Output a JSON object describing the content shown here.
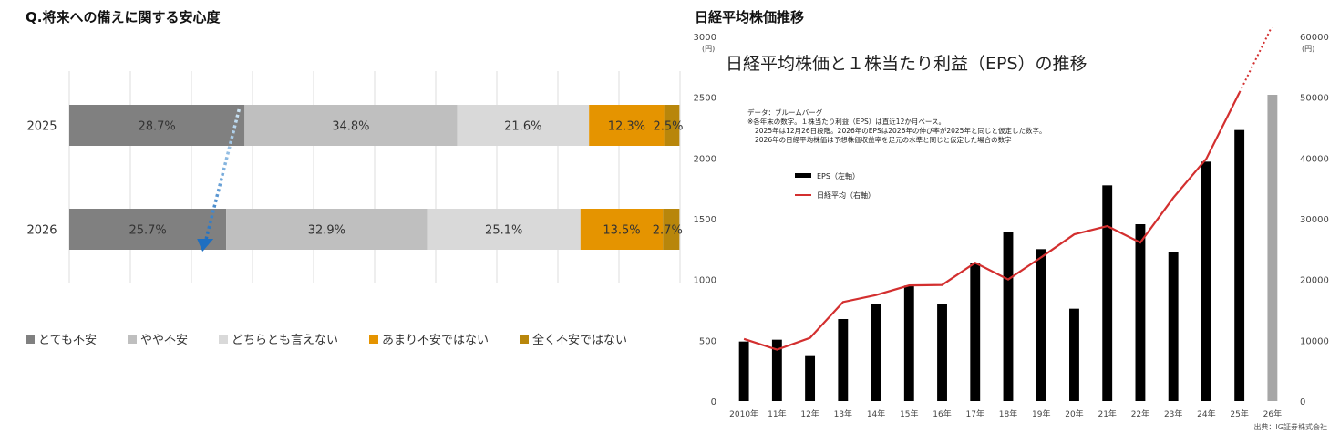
{
  "left": {
    "title": "Q.将来への備えに関する安心度",
    "chart_data": {
      "type": "bar",
      "orientation": "horizontal-stacked-100",
      "categories": [
        "2025",
        "2026"
      ],
      "series": [
        {
          "name": "とても不安",
          "values": [
            28.7,
            25.7
          ],
          "labels": [
            "28.7%",
            "25.7%"
          ],
          "color": "#808080"
        },
        {
          "name": "やや不安",
          "values": [
            34.8,
            32.9
          ],
          "labels": [
            "34.8%",
            "32.9%"
          ],
          "color": "#bfbfbf"
        },
        {
          "name": "どちらとも言えない",
          "values": [
            21.6,
            25.1
          ],
          "labels": [
            "21.6%",
            "25.1%"
          ],
          "color": "#d9d9d9"
        },
        {
          "name": "あまり不安ではない",
          "values": [
            12.3,
            13.5
          ],
          "labels": [
            "12.3%",
            "13.5%"
          ],
          "color": "#e59400"
        },
        {
          "name": "全く不安ではない",
          "values": [
            2.5,
            2.7
          ],
          "labels": [
            "2.5%",
            "2.7%"
          ],
          "color": "#b8860b"
        }
      ],
      "xlim": [
        0,
        100
      ],
      "grid": true,
      "legend": "bottom",
      "annotation": "arrow from 2025 とても不安 to 2026 とても不安"
    }
  },
  "right": {
    "title": "日経平均株価推移",
    "inner_title": "日経平均株価と１株当たり利益（EPS）の推移",
    "notes": [
      "データ：ブルームバーグ",
      "※各年末の数字。１株当たり利益（EPS）は直近12か月ベース。",
      "2025年は12月26日段階。2026年のEPSは2026年の伸び率が2025年と同じと仮定した数字。",
      "2026年の日経平均株価は予想株価収益率を足元の水準と同じと仮定した場合の数字"
    ],
    "source": "出典：IG証券株式会社",
    "left_unit": "(円)",
    "right_unit": "(円)",
    "chart_data": {
      "type": "bar+line",
      "categories": [
        "2010年",
        "11年",
        "12年",
        "13年",
        "14年",
        "15年",
        "16年",
        "17年",
        "18年",
        "19年",
        "20年",
        "21年",
        "22年",
        "23年",
        "24年",
        "25年",
        "26年"
      ],
      "series": [
        {
          "name": "EPS（左軸）",
          "axis": "left",
          "type": "bar",
          "values": [
            490,
            505,
            370,
            675,
            800,
            950,
            800,
            1135,
            1395,
            1250,
            760,
            1775,
            1455,
            1225,
            1970,
            2230,
            2520
          ],
          "color": "#000000",
          "last_color": "#a6a6a6"
        },
        {
          "name": "日経平均（右軸）",
          "axis": "right",
          "type": "line",
          "values": [
            10230,
            8460,
            10400,
            16300,
            17450,
            19030,
            19110,
            22760,
            20010,
            23660,
            27440,
            28790,
            26090,
            33460,
            39890,
            50750,
            61800
          ],
          "color": "#d32f2f",
          "projected_from_index": 15
        }
      ],
      "left_ylim": [
        0,
        3000
      ],
      "left_ticks": [
        0,
        500,
        1000,
        1500,
        2000,
        2500,
        3000
      ],
      "right_ylim": [
        0,
        60000
      ],
      "right_ticks": [
        0,
        10000,
        20000,
        30000,
        40000,
        50000,
        60000
      ],
      "grid": false,
      "legend": "upper-left"
    }
  }
}
